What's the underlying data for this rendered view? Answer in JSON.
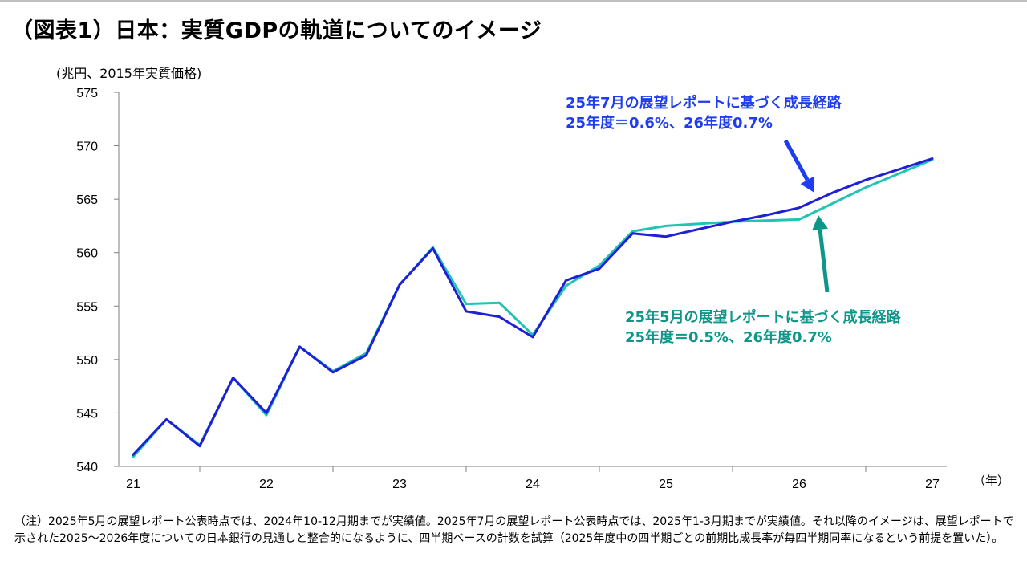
{
  "title": "（図表1）日本：実質GDPの軌道についてのイメージ",
  "colors": {
    "jul": "#1f1fd6",
    "may": "#1fc4b4",
    "jul_text": "#1f3df0",
    "may_text": "#0f968b"
  },
  "chart_data": {
    "type": "line",
    "title": "（図表1）日本：実質GDPの軌道についてのイメージ",
    "ylabel": "(兆円、2015年実質価格)",
    "xlabel": "（年）",
    "ylim": [
      540,
      575
    ],
    "yticks": [
      540,
      545,
      550,
      555,
      560,
      565,
      570,
      575
    ],
    "xlim": [
      21,
      27
    ],
    "xticks": [
      "21",
      "22",
      "23",
      "24",
      "25",
      "26",
      "27"
    ],
    "grid": false,
    "series": [
      {
        "name": "25年7月の展望レポートに基づく成長経路",
        "x": [
          21.0,
          21.25,
          21.5,
          21.75,
          22.0,
          22.25,
          22.5,
          22.75,
          23.0,
          23.25,
          23.5,
          23.75,
          24.0,
          24.25,
          24.5,
          24.75,
          25.0,
          25.25,
          25.5,
          25.75,
          26.0,
          26.25,
          26.5,
          26.75,
          27.0
        ],
        "values": [
          541.1,
          544.4,
          541.9,
          548.3,
          545.0,
          551.2,
          548.8,
          550.4,
          557.0,
          560.4,
          554.5,
          554.0,
          552.1,
          557.4,
          558.5,
          561.8,
          561.5,
          562.2,
          562.9,
          563.5,
          564.2,
          565.6,
          566.8,
          567.8,
          568.8
        ]
      },
      {
        "name": "25年5月の展望レポートに基づく成長経路",
        "x": [
          21.0,
          21.25,
          21.5,
          21.75,
          22.0,
          22.25,
          22.5,
          22.75,
          23.0,
          23.25,
          23.5,
          23.75,
          24.0,
          24.25,
          24.5,
          24.75,
          25.0,
          25.25,
          25.5,
          25.75,
          26.0,
          26.25,
          26.5,
          26.75,
          27.0
        ],
        "values": [
          540.9,
          544.4,
          542.0,
          548.3,
          544.8,
          551.2,
          548.9,
          550.6,
          557.0,
          560.5,
          555.2,
          555.3,
          552.3,
          556.9,
          558.8,
          562.0,
          562.5,
          562.7,
          562.9,
          563.0,
          563.1,
          564.6,
          566.1,
          567.4,
          568.7
        ]
      }
    ],
    "annotations": [
      {
        "series": "25年7月の展望レポートに基づく成長経路",
        "lines": [
          "25年7月の展望レポートに基づく成長経路",
          "25年度＝0.6%、26年度0.7%"
        ]
      },
      {
        "series": "25年5月の展望レポートに基づく成長経路",
        "lines": [
          "25年5月の展望レポートに基づく成長経路",
          "25年度＝0.5%、26年度0.7%"
        ]
      }
    ]
  },
  "annotations": {
    "jul_line1": "25年7月の展望レポートに基づく成長経路",
    "jul_line2": "25年度＝0.6%、26年度0.7%",
    "may_line1": "25年5月の展望レポートに基づく成長経路",
    "may_line2": "25年度＝0.5%、26年度0.7%"
  },
  "note": "（注）2025年5月の展望レポート公表時点では、2024年10-12月期までが実績値。2025年7月の展望レポート公表時点では、2025年1-3月期までが実績値。それ以降のイメージは、展望レポートで示された2025～2026年度についての日本銀行の見通しと整合的になるように、四半期ベースの計数を試算（2025年度中の四半期ごとの前期比成長率が毎四半期同率になるという前提を置いた）。"
}
